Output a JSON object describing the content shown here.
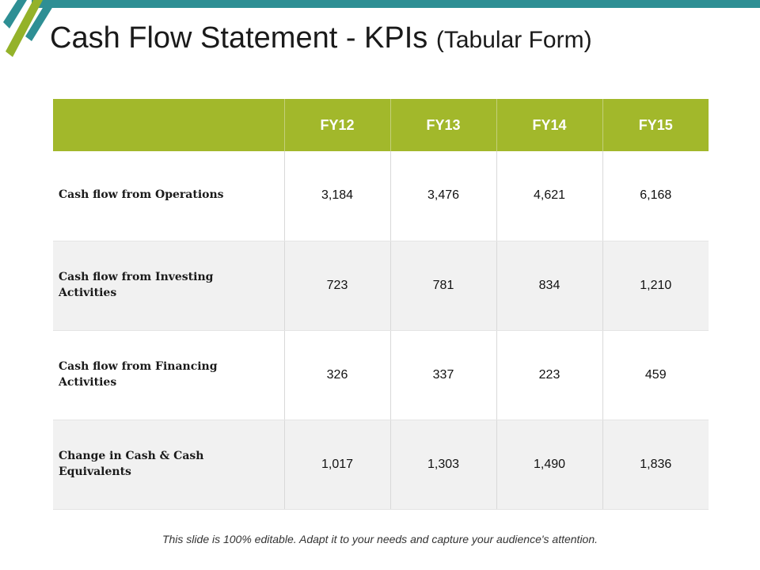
{
  "slide": {
    "title": "Cash Flow Statement - KPIs",
    "title_suffix": "(Tabular Form)",
    "footer": "This slide is 100% editable. Adapt it to your needs and capture your audience's attention."
  },
  "colors": {
    "header_green": "#a2b82b",
    "accent_teal": "#2e8f94",
    "stripe_green": "#94b22a",
    "row_alt_gray": "#f1f1f1"
  },
  "table": {
    "columns": [
      "FY12",
      "FY13",
      "FY14",
      "FY15"
    ],
    "rows": [
      {
        "label": "Cash flow from Operations",
        "values": [
          "3,184",
          "3,476",
          "4,621",
          "6,168"
        ]
      },
      {
        "label": "Cash flow from Investing Activities",
        "values": [
          "723",
          "781",
          "834",
          "1,210"
        ]
      },
      {
        "label": "Cash flow from Financing Activities",
        "values": [
          "326",
          "337",
          "223",
          "459"
        ]
      },
      {
        "label": "Change in Cash & Cash Equivalents",
        "values": [
          "1,017",
          "1,303",
          "1,490",
          "1,836"
        ]
      }
    ]
  }
}
